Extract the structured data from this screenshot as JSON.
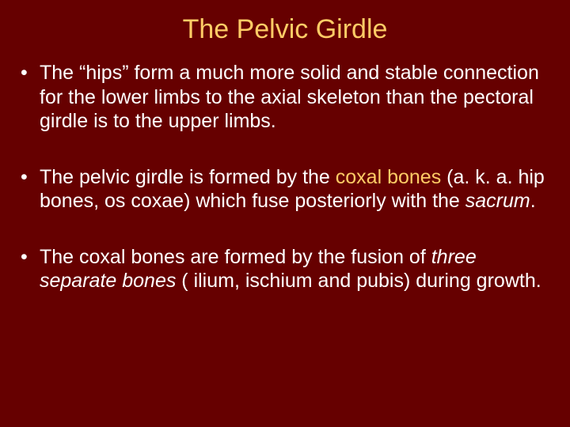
{
  "slide": {
    "background_color": "#660000",
    "title": {
      "text": "The Pelvic Girdle",
      "color": "#ffcc66",
      "fontsize": 34
    },
    "body_text_color": "#ffffff",
    "accent_color": "#ffcc66",
    "body_fontsize": 25,
    "bullets": [
      {
        "segments": [
          {
            "text": "The “hips” form a much more solid and stable connection for the lower limbs to the axial skeleton than the pectoral girdle is to the upper limbs."
          }
        ]
      },
      {
        "segments": [
          {
            "text": " The pelvic girdle is formed by the "
          },
          {
            "text": "coxal bones",
            "accent": true
          },
          {
            "text": " (a. k. a. hip bones, os coxae) which fuse posteriorly with the "
          },
          {
            "text": "sacrum",
            "italic": true
          },
          {
            "text": "."
          }
        ]
      },
      {
        "segments": [
          {
            "text": "The coxal bones are formed by the fusion of "
          },
          {
            "text": "three separate bones",
            "italic": true
          },
          {
            "text": " ( ilium, ischium and pubis) during growth."
          }
        ]
      }
    ]
  }
}
